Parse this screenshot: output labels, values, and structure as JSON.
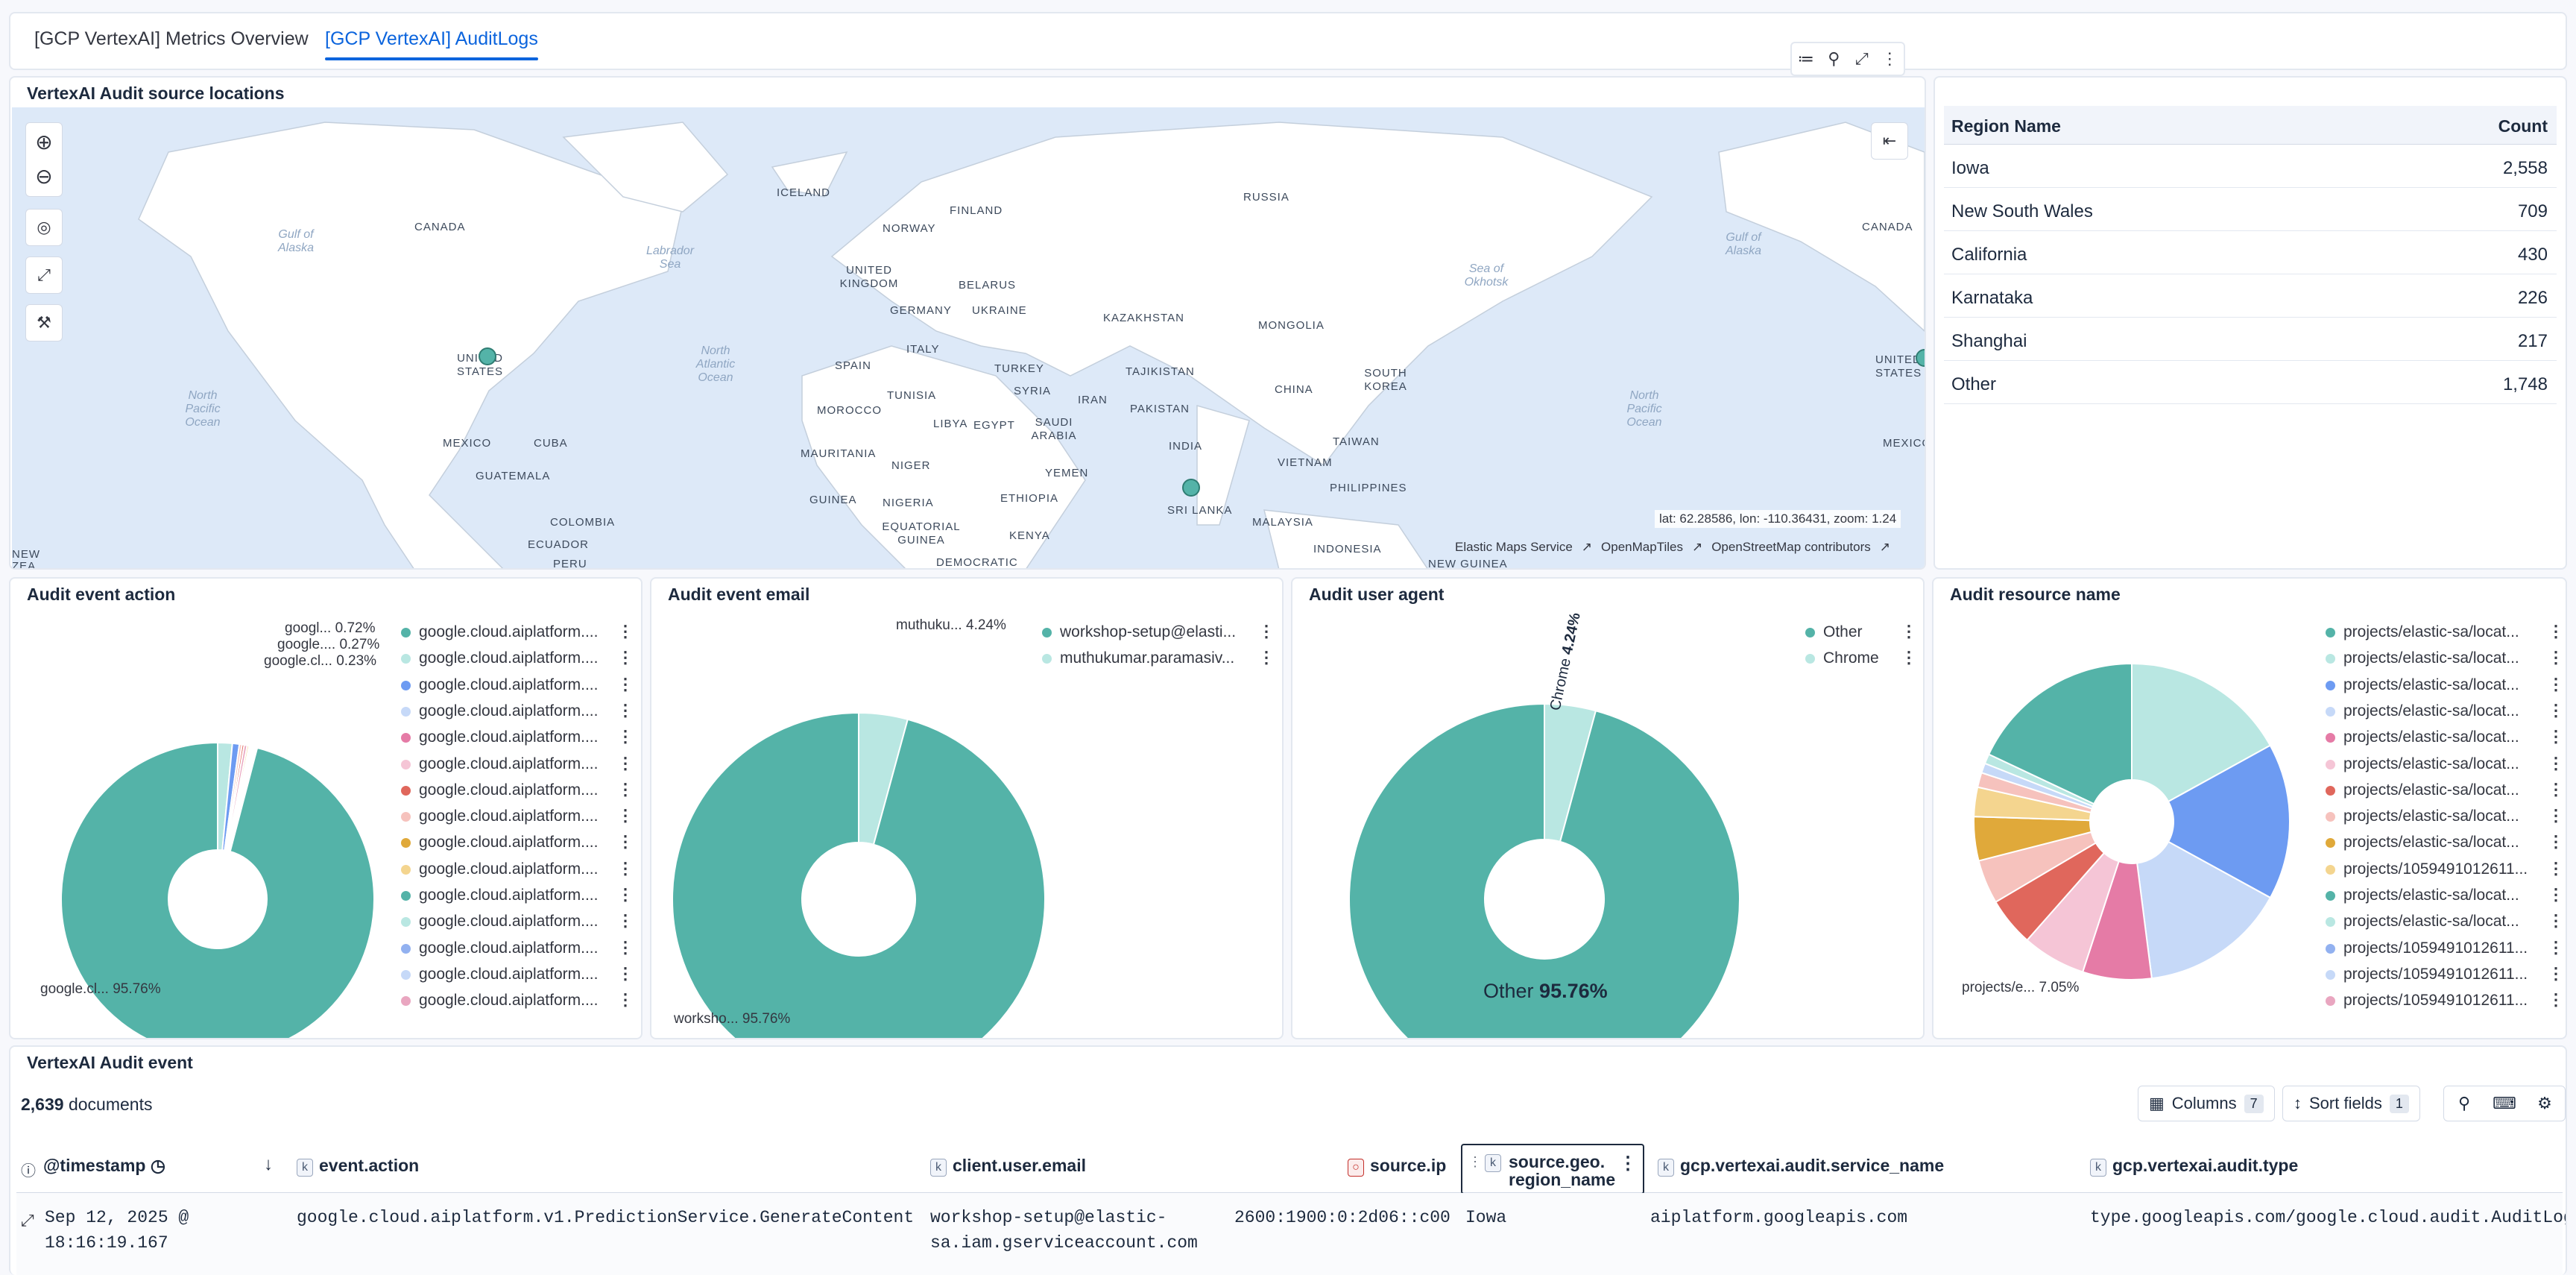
{
  "tabs": [
    {
      "label": "[GCP VertexAI] Metrics Overview",
      "active": false
    },
    {
      "label": "[GCP VertexAI] AuditLogs",
      "active": true
    }
  ],
  "map_panel": {
    "title": "VertexAI Audit source locations",
    "coords": "lat: 62.28586, lon: -110.36431, zoom: 1.24",
    "attribution": [
      "Elastic Maps Service",
      "OpenMapTiles",
      "OpenStreetMap contributors"
    ],
    "labels": [
      "CANADA",
      "UNITED STATES",
      "MEXICO",
      "CUBA",
      "GUATEMALA",
      "COLOMBIA",
      "ECUADOR",
      "PERU",
      "ICELAND",
      "FINLAND",
      "NORWAY",
      "UNITED KINGDOM",
      "BELARUS",
      "GERMANY",
      "UKRAINE",
      "ITALY",
      "SPAIN",
      "TURKEY",
      "SYRIA",
      "TUNISIA",
      "MOROCCO",
      "LIBYA",
      "EGYPT",
      "SAUDI ARABIA",
      "IRAN",
      "MAURITANIA",
      "NIGER",
      "GUINEA",
      "NIGERIA",
      "EQUATORIAL GUINEA",
      "ETHIOPIA",
      "YEMEN",
      "KENYA",
      "DEMOCRATIC",
      "RUSSIA",
      "KAZAKHSTAN",
      "MONGOLIA",
      "TAJIKISTAN",
      "PAKISTAN",
      "CHINA",
      "SOUTH KOREA",
      "INDIA",
      "TAIWAN",
      "VIETNAM",
      "PHILIPPINES",
      "SRI LANKA",
      "MALAYSIA",
      "INDONESIA",
      "NEW GUINEA",
      "CANADA",
      "UNITED STATES",
      "MEXICO"
    ],
    "seas": [
      "Gulf of Alaska",
      "Labrador Sea",
      "North Atlantic Ocean",
      "North Pacific Ocean",
      "Sea of Okhotsk",
      "Gulf of Alaska",
      "North Pacific Ocean",
      "NEW ZEA"
    ]
  },
  "region_table": {
    "headers": [
      "Region Name",
      "Count"
    ],
    "rows": [
      {
        "name": "Iowa",
        "count": "2,558"
      },
      {
        "name": "New South Wales",
        "count": "709"
      },
      {
        "name": "California",
        "count": "430"
      },
      {
        "name": "Karnataka",
        "count": "226"
      },
      {
        "name": "Shanghai",
        "count": "217"
      },
      {
        "name": "Other",
        "count": "1,748"
      }
    ]
  },
  "charts": {
    "action": {
      "title": "Audit event action",
      "labels": [
        {
          "text": "googl...",
          "pct": "0.72%"
        },
        {
          "text": "google....",
          "pct": "0.27%"
        },
        {
          "text": "google.cl...",
          "pct": "0.23%"
        },
        {
          "text": "google.cl...",
          "pct": "95.76%"
        }
      ],
      "legend": [
        "google.cloud.aiplatform....",
        "google.cloud.aiplatform....",
        "google.cloud.aiplatform....",
        "google.cloud.aiplatform....",
        "google.cloud.aiplatform....",
        "google.cloud.aiplatform....",
        "google.cloud.aiplatform....",
        "google.cloud.aiplatform....",
        "google.cloud.aiplatform....",
        "google.cloud.aiplatform....",
        "google.cloud.aiplatform....",
        "google.cloud.aiplatform....",
        "google.cloud.aiplatform....",
        "google.cloud.aiplatform....",
        "google.cloud.aiplatform...."
      ]
    },
    "email": {
      "title": "Audit event email",
      "labels": [
        {
          "text": "muthuku...",
          "pct": "4.24%"
        },
        {
          "text": "worksho...",
          "pct": "95.76%"
        }
      ],
      "legend": [
        "workshop-setup@elasti...",
        "muthukumar.paramasiv..."
      ]
    },
    "agent": {
      "title": "Audit user agent",
      "labels": [
        {
          "text": "Chrome",
          "pct": "4.24%"
        },
        {
          "text": "Other",
          "pct": "95.76%"
        }
      ],
      "legend": [
        "Other",
        "Chrome"
      ]
    },
    "resource": {
      "title": "Audit resource name",
      "labels": [
        {
          "text": "projects/e...",
          "pct": "7.05%"
        }
      ],
      "legend": [
        "projects/elastic-sa/locat...",
        "projects/elastic-sa/locat...",
        "projects/elastic-sa/locat...",
        "projects/elastic-sa/locat...",
        "projects/elastic-sa/locat...",
        "projects/elastic-sa/locat...",
        "projects/elastic-sa/locat...",
        "projects/elastic-sa/locat...",
        "projects/elastic-sa/locat...",
        "projects/1059491012611...",
        "projects/elastic-sa/locat...",
        "projects/elastic-sa/locat...",
        "projects/1059491012611...",
        "projects/1059491012611...",
        "projects/1059491012611..."
      ]
    }
  },
  "chart_data": [
    {
      "type": "pie",
      "title": "Audit event action",
      "categories": [
        "google.cl...",
        "googl...",
        "google....",
        "google.cl..."
      ],
      "values": [
        95.76,
        0.72,
        0.27,
        0.23
      ]
    },
    {
      "type": "pie",
      "title": "Audit event email",
      "categories": [
        "worksho...",
        "muthuku..."
      ],
      "values": [
        95.76,
        4.24
      ]
    },
    {
      "type": "pie",
      "title": "Audit user agent",
      "categories": [
        "Other",
        "Chrome"
      ],
      "values": [
        95.76,
        4.24
      ]
    },
    {
      "type": "pie",
      "title": "Audit resource name",
      "categories": [
        "projects/e..."
      ],
      "values": [
        7.05
      ]
    }
  ],
  "events": {
    "title": "VertexAI Audit event",
    "doc_count": "2,639",
    "doc_label": "documents",
    "columns_label": "Columns",
    "columns_count": "7",
    "sort_label": "Sort fields",
    "sort_count": "1",
    "headers": [
      "@timestamp",
      "event.action",
      "client.user.email",
      "source.ip",
      "source.geo.",
      "region_name",
      "gcp.vertexai.audit.service_name",
      "gcp.vertexai.audit.type"
    ],
    "row": {
      "ts1": "Sep 12, 2025 @",
      "ts2": "18:16:19.167",
      "action": "google.cloud.aiplatform.v1.PredictionService.GenerateContent",
      "email1": "workshop-setup@elastic-",
      "email2": "sa.iam.gserviceaccount.com",
      "ip": "2600:1900:0:2d06::c00",
      "region": "Iowa",
      "service": "aiplatform.googleapis.com",
      "type": "type.googleapis.com/google.cloud.audit.AuditLog"
    }
  }
}
